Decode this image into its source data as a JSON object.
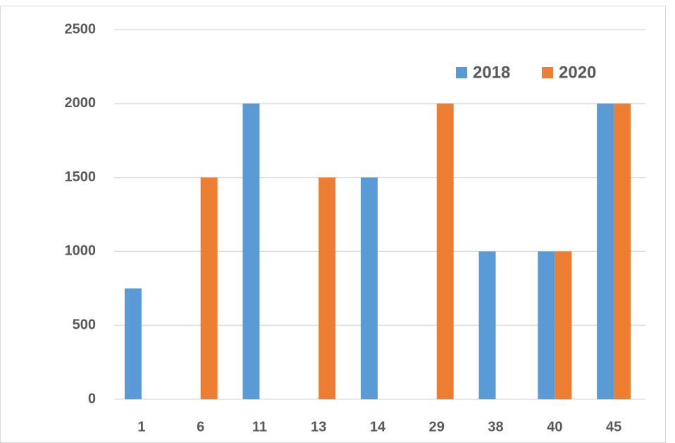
{
  "chart_data": {
    "type": "bar",
    "categories": [
      "1",
      "6",
      "11",
      "13",
      "14",
      "29",
      "38",
      "40",
      "45"
    ],
    "series": [
      {
        "name": "2018",
        "color": "#5b9bd5",
        "values": [
          750,
          null,
          2000,
          null,
          1500,
          null,
          1000,
          1000,
          2000
        ]
      },
      {
        "name": "2020",
        "color": "#ed7d31",
        "values": [
          null,
          1500,
          null,
          1500,
          null,
          2000,
          null,
          1000,
          2000
        ]
      }
    ],
    "ylim": [
      0,
      2500
    ],
    "yticks": [
      0,
      500,
      1000,
      1500,
      2000,
      2500
    ],
    "grid": true,
    "legend": "top-right"
  }
}
